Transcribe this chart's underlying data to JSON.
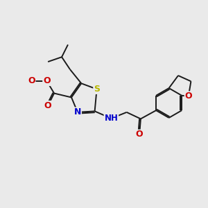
{
  "bg": "#eaeaea",
  "bc": "#1a1a1a",
  "lw": 1.4,
  "sep": 0.06,
  "fs": 8.5,
  "Sc": "#b8b800",
  "Nc": "#0000cc",
  "Oc": "#cc0000",
  "xlim": [
    0,
    10
  ],
  "ylim": [
    0,
    10
  ]
}
